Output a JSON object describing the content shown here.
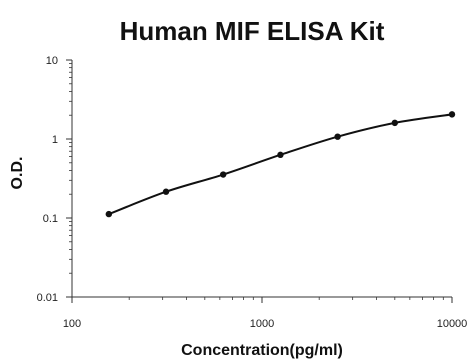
{
  "chart_data": {
    "type": "scatter",
    "title": "Human MIF ELISA Kit",
    "xlabel": "Concentration(pg/ml)",
    "ylabel": "O.D.",
    "x_scale": "log",
    "y_scale": "log",
    "xlim": [
      100,
      10000
    ],
    "ylim": [
      0.01,
      10
    ],
    "x_ticks": [
      "100",
      "1000",
      "10000"
    ],
    "y_ticks": [
      "0.01",
      "0.1",
      "1",
      "10"
    ],
    "grid": false,
    "legend": "none",
    "series": [
      {
        "x": [
          156.25,
          312.5,
          625,
          1250,
          2500,
          5000,
          10000
        ],
        "y": [
          0.112,
          0.215,
          0.355,
          0.63,
          1.07,
          1.6,
          2.05
        ]
      }
    ],
    "fit_curve": true,
    "colors": {
      "line": "#111111",
      "points": "#111111",
      "axis": "#333333"
    }
  }
}
